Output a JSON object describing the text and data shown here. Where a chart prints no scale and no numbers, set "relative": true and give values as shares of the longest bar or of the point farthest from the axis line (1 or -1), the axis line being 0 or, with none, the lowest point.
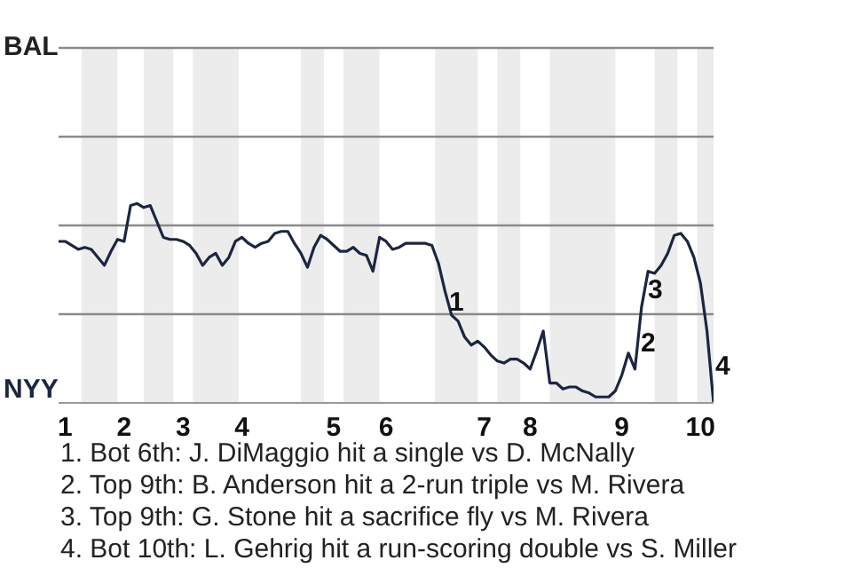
{
  "chart_data": {
    "type": "line",
    "categories": [
      null,
      "1",
      null,
      null,
      null,
      null,
      null,
      null,
      null,
      null,
      "2",
      null,
      null,
      null,
      null,
      null,
      null,
      null,
      null,
      "3",
      null,
      null,
      null,
      null,
      null,
      null,
      null,
      null,
      "4",
      null,
      null,
      null,
      null,
      null,
      null,
      null,
      null,
      null,
      null,
      null,
      null,
      null,
      "5",
      null,
      null,
      null,
      null,
      null,
      null,
      null,
      "6",
      null,
      null,
      null,
      null,
      null,
      null,
      null,
      null,
      null,
      null,
      null,
      null,
      null,
      null,
      "7",
      null,
      null,
      null,
      null,
      null,
      null,
      "8",
      null,
      null,
      null,
      null,
      null,
      null,
      null,
      null,
      null,
      null,
      null,
      null,
      null,
      "9",
      null,
      null,
      null,
      null,
      null,
      null,
      null,
      null,
      null,
      null,
      null,
      "10",
      null,
      null
    ],
    "relative": true,
    "ref_lines": [
      {
        "axis": "y",
        "value": 0.445,
        "color": "#8a8a8a"
      },
      {
        "axis": "y",
        "value": 0.89,
        "color": "#8a8a8a"
      },
      {
        "axis": "y",
        "value": 1.335,
        "color": "#8a8a8a"
      },
      {
        "axis": "y",
        "value": 1.78,
        "color": "#8a8a8a"
      }
    ],
    "series": [
      {
        "color": "#1c2541",
        "values": [
          0.81,
          0.81,
          0.79,
          0.77,
          0.78,
          0.77,
          0.73,
          0.69,
          0.76,
          0.82,
          0.81,
          0.99,
          1,
          0.98,
          0.99,
          0.91,
          0.83,
          0.82,
          0.82,
          0.81,
          0.79,
          0.75,
          0.69,
          0.73,
          0.75,
          0.69,
          0.73,
          0.81,
          0.83,
          0.8,
          0.78,
          0.8,
          0.81,
          0.85,
          0.86,
          0.86,
          0.8,
          0.75,
          0.68,
          0.78,
          0.84,
          0.82,
          0.79,
          0.76,
          0.76,
          0.78,
          0.75,
          0.74,
          0.66,
          0.83,
          0.81,
          0.77,
          0.78,
          0.8,
          0.8,
          0.8,
          0.8,
          0.79,
          0.7,
          0.56,
          0.44,
          0.41,
          0.33,
          0.29,
          0.31,
          0.28,
          0.24,
          0.21,
          0.2,
          0.22,
          0.22,
          0.2,
          0.17,
          0.26,
          0.36,
          0.1,
          0.1,
          0.07,
          0.08,
          0.08,
          0.06,
          0.05,
          0.03,
          0.03,
          0.03,
          0.06,
          0.14,
          0.25,
          0.17,
          0.48,
          0.66,
          0.65,
          0.69,
          0.75,
          0.84,
          0.85,
          0.81,
          0.73,
          0.6,
          0.36,
          0
        ]
      }
    ],
    "marker": "none",
    "annotations": [
      "BAL",
      "NYY",
      "1",
      "2",
      "3",
      "4",
      "1. Bot 6th: J. DiMaggio hit a single vs D. McNally",
      "2. Top 9th: B. Anderson hit a 2-run triple vs M. Rivera",
      "3. Top 9th: G. Stone hit a sacrifice fly vs M. Rivera",
      "4. Bot 10th: L. Gehrig hit a run-scoring double vs S. Miller"
    ]
  }
}
